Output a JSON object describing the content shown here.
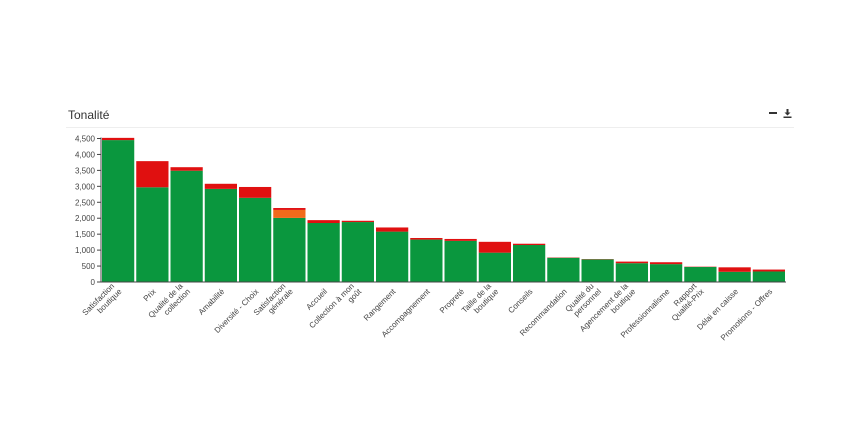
{
  "panel": {
    "title": "Tonalité",
    "tools": {
      "minimize_icon": "minus-icon",
      "download_icon": "download-icon"
    }
  },
  "colors": {
    "positive": "#0a973e",
    "neutral": "#f26a1b",
    "negative": "#e01010",
    "axis": "#444444"
  },
  "chart_data": {
    "type": "bar",
    "stacked": true,
    "title": "",
    "xlabel": "",
    "ylabel": "",
    "ylim": [
      0,
      4500
    ],
    "yticks": [
      0,
      500,
      1000,
      1500,
      2000,
      2500,
      3000,
      3500,
      4000,
      4500
    ],
    "ytick_labels": [
      "0",
      "500",
      "1,000",
      "1,500",
      "2,000",
      "2,500",
      "3,000",
      "3,500",
      "4,000",
      "4,500"
    ],
    "categories": [
      [
        "Satisfaction",
        "boutique"
      ],
      [
        "Prix"
      ],
      [
        "Qualité de la",
        "collection"
      ],
      [
        "Amabilité"
      ],
      [
        "Diversité - Choix"
      ],
      [
        "Satisfaction",
        "générale"
      ],
      [
        "Accueil"
      ],
      [
        "Collection à mon",
        "goût"
      ],
      [
        "Rangement"
      ],
      [
        "Accompagnement"
      ],
      [
        "Propreté"
      ],
      [
        "Taille de la",
        "boutique"
      ],
      [
        "Conseils"
      ],
      [
        "Recommandation"
      ],
      [
        "Qualité du",
        "personnel"
      ],
      [
        "Agencement de la",
        "boutique"
      ],
      [
        "Professionnalisme"
      ],
      [
        "Rapport",
        "Qualité-Prix"
      ],
      [
        "Délai en caisse"
      ],
      [
        "Promotions - Offres"
      ]
    ],
    "series": [
      {
        "color_key": "positive",
        "values": [
          4450,
          2970,
          3490,
          2920,
          2640,
          2010,
          1850,
          1880,
          1580,
          1330,
          1290,
          920,
          1160,
          760,
          710,
          590,
          560,
          470,
          320,
          330
        ]
      },
      {
        "color_key": "neutral",
        "values": [
          0,
          0,
          0,
          0,
          0,
          250,
          0,
          0,
          0,
          0,
          0,
          0,
          0,
          0,
          0,
          0,
          0,
          0,
          0,
          0
        ]
      },
      {
        "color_key": "negative",
        "values": [
          70,
          820,
          110,
          160,
          340,
          60,
          90,
          40,
          130,
          50,
          60,
          340,
          40,
          10,
          10,
          50,
          60,
          10,
          140,
          60
        ]
      }
    ]
  }
}
